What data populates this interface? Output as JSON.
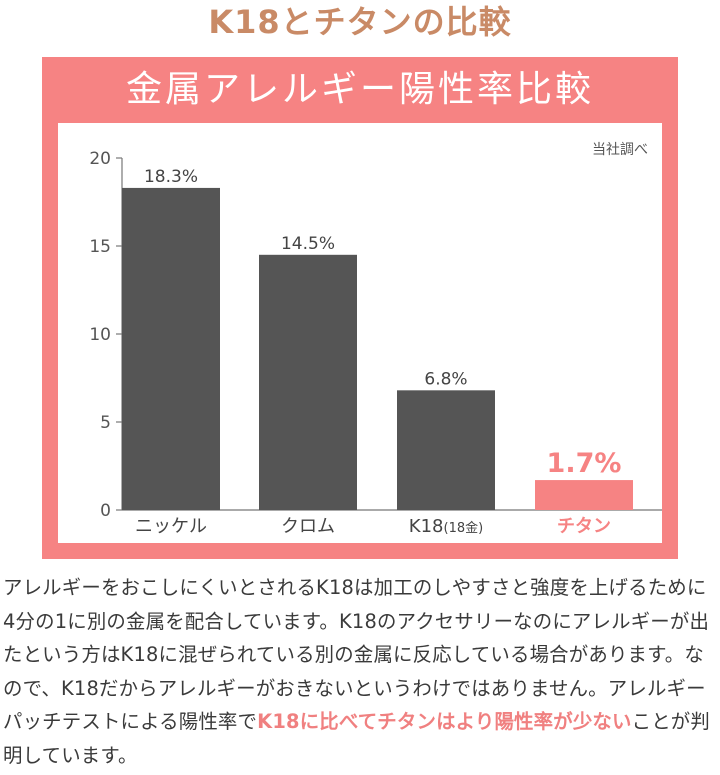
{
  "header": {
    "title": "K18とチタンの比較"
  },
  "panel": {
    "title": "金属アレルギー陽性率比較"
  },
  "colors": {
    "accent": "#f68383",
    "bar": "#555555",
    "title": "#c98a66"
  },
  "chart_data": {
    "type": "bar",
    "source_note": "当社調べ",
    "categories": [
      "ニッケル",
      "クロム",
      "K18",
      "チタン"
    ],
    "category_subnotes": [
      "",
      "",
      "(18金)",
      ""
    ],
    "values": [
      18.3,
      14.5,
      6.8,
      1.7
    ],
    "value_labels": [
      "18.3%",
      "14.5%",
      "6.8%",
      "1.7%"
    ],
    "highlight_index": 3,
    "ylim": [
      0,
      20
    ],
    "yticks": [
      0,
      5,
      10,
      15,
      20
    ],
    "xlabel": "",
    "ylabel": "",
    "title": ""
  },
  "description": {
    "part1": "アレルギーをおこしにくいとされるK18は加工のしやすさと強度を上げるために4分の1に別の金属を配合しています。K18のアクセサリーなのにアレルギーが出たという方はK18に混ぜられている別の金属に反応している場合があります。なので、K18だからアレルギーがおきないというわけではありません。アレルギーパッチテストによる陽性率で",
    "highlight": "K18に比べてチタンはより陽性率が少ない",
    "part2": "ことが判明しています。"
  }
}
